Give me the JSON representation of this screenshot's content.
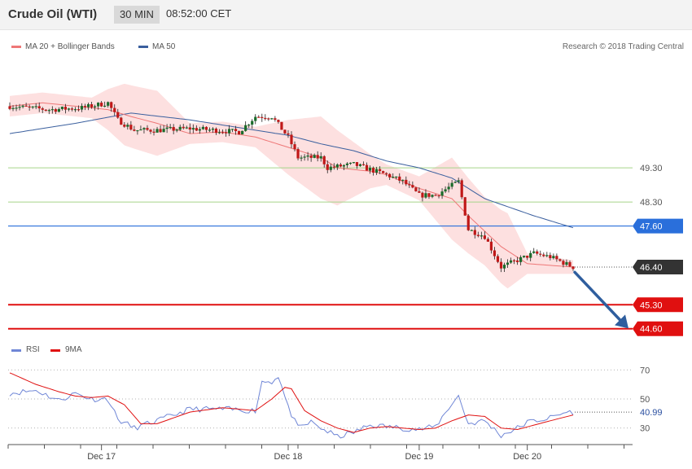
{
  "header": {
    "title": "Crude Oil (WTI)",
    "timeframe": "30 MIN",
    "time": "08:52:00 CET"
  },
  "legend": {
    "ma20_label": "MA 20 + Bollinger Bands",
    "ma50_label": "MA 50",
    "rsi_label": "RSI",
    "ma9_label": "9MA"
  },
  "attribution": "Research © 2018 Trading Central",
  "colors": {
    "ma20": "#ee7777",
    "band_fill": "#fde0e0",
    "ma50": "#3a5f9e",
    "rsi": "#6f86d6",
    "rsi_ma": "#e01010",
    "candle_up": "#1a6b2a",
    "candle_down": "#c01818",
    "resistance": "#a6d48a",
    "pivot": "#2a6fdb",
    "support": "#e01010",
    "arrow": "#2f5e9e",
    "current_price_bg": "#333333"
  },
  "chart_data": [
    {
      "type": "candlestick",
      "x_ticks": [
        "Dec 17",
        "Dec 18",
        "Dec 19",
        "Dec 20"
      ],
      "ylim": [
        44.45,
        52.3
      ],
      "current_price": {
        "value": 46.4,
        "label": "46.40"
      },
      "levels": [
        {
          "name": "resistance-2",
          "value": 49.3,
          "label": "49.30",
          "kind": "resistance"
        },
        {
          "name": "resistance-1",
          "value": 48.3,
          "label": "48.30",
          "kind": "resistance"
        },
        {
          "name": "pivot",
          "value": 47.6,
          "label": "47.60",
          "kind": "pivot"
        },
        {
          "name": "support-1",
          "value": 45.3,
          "label": "45.30",
          "kind": "support"
        },
        {
          "name": "support-2",
          "value": 44.6,
          "label": "44.60",
          "kind": "support"
        }
      ],
      "ma20_anchors": [
        [
          0,
          51.1
        ],
        [
          10,
          51.2
        ],
        [
          20,
          51.1
        ],
        [
          30,
          51.0
        ],
        [
          37,
          50.8
        ],
        [
          45,
          50.6
        ],
        [
          55,
          50.3
        ],
        [
          65,
          50.35
        ],
        [
          75,
          50.2
        ],
        [
          85,
          49.9
        ],
        [
          95,
          49.6
        ],
        [
          100,
          49.3
        ],
        [
          110,
          49.2
        ],
        [
          115,
          49.1
        ],
        [
          125,
          48.7
        ],
        [
          135,
          48.4
        ],
        [
          140,
          47.9
        ],
        [
          150,
          47.0
        ],
        [
          158,
          46.5
        ],
        [
          172,
          46.4
        ]
      ],
      "ma50_anchors": [
        [
          0,
          50.3
        ],
        [
          20,
          50.6
        ],
        [
          37,
          50.9
        ],
        [
          55,
          50.7
        ],
        [
          75,
          50.4
        ],
        [
          85,
          50.25
        ],
        [
          95,
          50.0
        ],
        [
          105,
          49.8
        ],
        [
          115,
          49.5
        ],
        [
          125,
          49.3
        ],
        [
          135,
          49.0
        ],
        [
          145,
          48.4
        ],
        [
          160,
          47.9
        ],
        [
          172,
          47.55
        ]
      ],
      "band_width_anchors": [
        [
          0,
          0.3
        ],
        [
          25,
          0.3
        ],
        [
          35,
          0.9
        ],
        [
          45,
          0.95
        ],
        [
          55,
          0.3
        ],
        [
          75,
          0.3
        ],
        [
          85,
          0.8
        ],
        [
          95,
          1.2
        ],
        [
          100,
          1.1
        ],
        [
          110,
          0.5
        ],
        [
          115,
          0.3
        ],
        [
          125,
          0.35
        ],
        [
          135,
          1.2
        ],
        [
          145,
          1.0
        ],
        [
          152,
          1.1
        ],
        [
          158,
          0.3
        ],
        [
          172,
          0.2
        ]
      ],
      "close_anchors": [
        [
          0,
          51.1
        ],
        [
          12,
          51.0
        ],
        [
          22,
          51.05
        ],
        [
          30,
          51.2
        ],
        [
          33,
          50.7
        ],
        [
          38,
          50.4
        ],
        [
          45,
          50.4
        ],
        [
          55,
          50.45
        ],
        [
          70,
          50.35
        ],
        [
          75,
          50.8
        ],
        [
          80,
          50.8
        ],
        [
          85,
          50.2
        ],
        [
          88,
          49.6
        ],
        [
          95,
          49.6
        ],
        [
          97,
          49.3
        ],
        [
          105,
          49.4
        ],
        [
          115,
          49.1
        ],
        [
          120,
          48.9
        ],
        [
          125,
          48.5
        ],
        [
          130,
          48.5
        ],
        [
          137,
          48.9
        ],
        [
          140,
          47.5
        ],
        [
          145,
          47.3
        ],
        [
          150,
          46.4
        ],
        [
          155,
          46.6
        ],
        [
          160,
          46.8
        ],
        [
          165,
          46.7
        ],
        [
          172,
          46.4
        ]
      ]
    },
    {
      "type": "line",
      "name": "RSI",
      "value_label": "40.99",
      "y_ticks": [
        30,
        50,
        70
      ],
      "ylim": [
        22,
        78
      ],
      "rsi_anchors": [
        [
          0,
          54
        ],
        [
          8,
          56
        ],
        [
          15,
          49
        ],
        [
          20,
          54
        ],
        [
          25,
          50
        ],
        [
          30,
          50
        ],
        [
          33,
          36
        ],
        [
          38,
          30
        ],
        [
          45,
          35
        ],
        [
          55,
          43
        ],
        [
          65,
          43
        ],
        [
          75,
          42
        ],
        [
          77,
          62
        ],
        [
          80,
          62
        ],
        [
          82,
          66
        ],
        [
          85,
          44
        ],
        [
          88,
          30
        ],
        [
          92,
          34
        ],
        [
          95,
          30
        ],
        [
          100,
          24
        ],
        [
          105,
          27
        ],
        [
          110,
          32
        ],
        [
          115,
          31
        ],
        [
          120,
          30
        ],
        [
          125,
          29
        ],
        [
          130,
          31
        ],
        [
          135,
          47
        ],
        [
          137,
          52
        ],
        [
          140,
          33
        ],
        [
          145,
          35
        ],
        [
          150,
          25
        ],
        [
          155,
          30
        ],
        [
          158,
          34
        ],
        [
          165,
          37
        ],
        [
          170,
          41
        ],
        [
          172,
          41
        ]
      ],
      "ma9_anchors": [
        [
          0,
          68
        ],
        [
          8,
          60
        ],
        [
          15,
          55
        ],
        [
          20,
          52
        ],
        [
          25,
          51
        ],
        [
          30,
          52
        ],
        [
          35,
          46
        ],
        [
          40,
          33
        ],
        [
          45,
          33
        ],
        [
          55,
          41
        ],
        [
          65,
          44
        ],
        [
          75,
          42
        ],
        [
          80,
          50
        ],
        [
          84,
          58
        ],
        [
          86,
          57
        ],
        [
          90,
          42
        ],
        [
          95,
          35
        ],
        [
          100,
          30
        ],
        [
          105,
          27
        ],
        [
          110,
          30
        ],
        [
          115,
          31
        ],
        [
          120,
          30
        ],
        [
          125,
          29
        ],
        [
          130,
          30
        ],
        [
          135,
          35
        ],
        [
          140,
          39
        ],
        [
          145,
          38
        ],
        [
          150,
          30
        ],
        [
          155,
          29
        ],
        [
          160,
          32
        ],
        [
          165,
          35
        ],
        [
          172,
          39
        ]
      ]
    }
  ]
}
